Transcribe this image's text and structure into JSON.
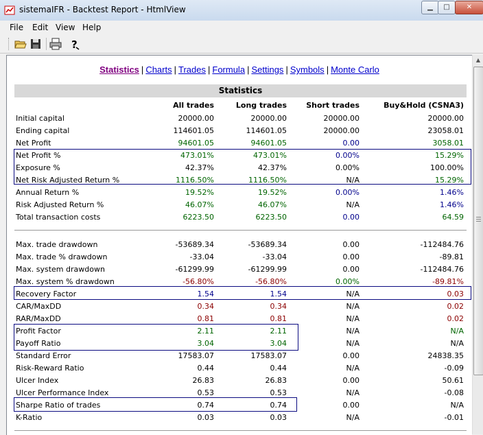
{
  "window": {
    "title": "sistemaIFR - Backtest Report - HtmlView"
  },
  "menu": [
    "File",
    "Edit",
    "View",
    "Help"
  ],
  "toolbar": {
    "icons": [
      "open-folder-icon",
      "save-icon",
      "print-icon",
      "help-icon"
    ]
  },
  "nav": {
    "links": [
      "Statistics",
      "Charts",
      "Trades",
      "Formula",
      "Settings",
      "Symbols",
      "Monte Carlo"
    ],
    "active": "Statistics",
    "separator": "|"
  },
  "stats": {
    "title": "Statistics",
    "columns": [
      "All trades",
      "Long trades",
      "Short trades",
      "Buy&Hold (CSNA3)"
    ],
    "rows": [
      {
        "label": "Initial capital",
        "values": [
          "20000.00",
          "20000.00",
          "20000.00",
          "20000.00"
        ],
        "colors": [
          "",
          "",
          "",
          ""
        ]
      },
      {
        "label": "Ending capital",
        "values": [
          "114601.05",
          "114601.05",
          "20000.00",
          "23058.01"
        ],
        "colors": [
          "",
          "",
          "",
          ""
        ]
      },
      {
        "label": "Net Profit",
        "values": [
          "94601.05",
          "94601.05",
          "0.00",
          "3058.01"
        ],
        "colors": [
          "green",
          "green",
          "blue",
          "green"
        ]
      },
      {
        "label": "Net Profit %",
        "values": [
          "473.01%",
          "473.01%",
          "0.00%",
          "15.29%"
        ],
        "colors": [
          "green",
          "green",
          "blue",
          "green"
        ]
      },
      {
        "label": "Exposure %",
        "values": [
          "42.37%",
          "42.37%",
          "0.00%",
          "100.00%"
        ],
        "colors": [
          "",
          "",
          "",
          ""
        ]
      },
      {
        "label": "Net Risk Adjusted Return %",
        "values": [
          "1116.50%",
          "1116.50%",
          "N/A",
          "15.29%"
        ],
        "colors": [
          "green",
          "green",
          "",
          "green"
        ]
      },
      {
        "label": "Annual Return %",
        "values": [
          "19.52%",
          "19.52%",
          "0.00%",
          "1.46%"
        ],
        "colors": [
          "green",
          "green",
          "blue",
          "blue"
        ]
      },
      {
        "label": "Risk Adjusted Return %",
        "values": [
          "46.07%",
          "46.07%",
          "N/A",
          "1.46%"
        ],
        "colors": [
          "green",
          "green",
          "",
          "blue"
        ]
      },
      {
        "label": "Total transaction costs",
        "values": [
          "6223.50",
          "6223.50",
          "0.00",
          "64.59"
        ],
        "colors": [
          "green",
          "green",
          "blue",
          "green"
        ]
      },
      {
        "label": "Max. trade drawdown",
        "values": [
          "-53689.34",
          "-53689.34",
          "0.00",
          "-112484.76"
        ],
        "colors": [
          "",
          "",
          "",
          ""
        ]
      },
      {
        "label": "Max. trade % drawdown",
        "values": [
          "-33.04",
          "-33.04",
          "0.00",
          "-89.81"
        ],
        "colors": [
          "",
          "",
          "",
          ""
        ]
      },
      {
        "label": "Max. system drawdown",
        "values": [
          "-61299.99",
          "-61299.99",
          "0.00",
          "-112484.76"
        ],
        "colors": [
          "",
          "",
          "",
          ""
        ]
      },
      {
        "label": "Max. system % drawdown",
        "values": [
          "-56.80%",
          "-56.80%",
          "0.00%",
          "-89.81%"
        ],
        "colors": [
          "red",
          "red",
          "green",
          "red"
        ]
      },
      {
        "label": "Recovery Factor",
        "values": [
          "1.54",
          "1.54",
          "N/A",
          "0.03"
        ],
        "colors": [
          "blue",
          "blue",
          "",
          "red"
        ]
      },
      {
        "label": "CAR/MaxDD",
        "values": [
          "0.34",
          "0.34",
          "N/A",
          "0.02"
        ],
        "colors": [
          "red",
          "red",
          "",
          "red"
        ]
      },
      {
        "label": "RAR/MaxDD",
        "values": [
          "0.81",
          "0.81",
          "N/A",
          "0.02"
        ],
        "colors": [
          "red",
          "red",
          "",
          "red"
        ]
      },
      {
        "label": "Profit Factor",
        "values": [
          "2.11",
          "2.11",
          "N/A",
          "N/A"
        ],
        "colors": [
          "green",
          "green",
          "",
          "green"
        ]
      },
      {
        "label": "Payoff Ratio",
        "values": [
          "3.04",
          "3.04",
          "N/A",
          "N/A"
        ],
        "colors": [
          "green",
          "green",
          "",
          ""
        ]
      },
      {
        "label": "Standard Error",
        "values": [
          "17583.07",
          "17583.07",
          "0.00",
          "24838.35"
        ],
        "colors": [
          "",
          "",
          "",
          ""
        ]
      },
      {
        "label": "Risk-Reward Ratio",
        "values": [
          "0.44",
          "0.44",
          "N/A",
          "-0.09"
        ],
        "colors": [
          "",
          "",
          "",
          ""
        ]
      },
      {
        "label": "Ulcer Index",
        "values": [
          "26.83",
          "26.83",
          "0.00",
          "50.61"
        ],
        "colors": [
          "",
          "",
          "",
          ""
        ]
      },
      {
        "label": "Ulcer Performance Index",
        "values": [
          "0.53",
          "0.53",
          "N/A",
          "-0.08"
        ],
        "colors": [
          "",
          "",
          "",
          ""
        ]
      },
      {
        "label": "Sharpe Ratio of trades",
        "values": [
          "0.74",
          "0.74",
          "0.00",
          "N/A"
        ],
        "colors": [
          "",
          "",
          "",
          ""
        ]
      },
      {
        "label": "K-Ratio",
        "values": [
          "0.03",
          "0.03",
          "N/A",
          "-0.01"
        ],
        "colors": [
          "",
          "",
          "",
          ""
        ]
      }
    ]
  },
  "colors": {
    "green": "#006400",
    "blue": "#00008b",
    "red": "#8b0000",
    "link": "#0000cc",
    "visited": "#800080",
    "highlight_box": "#0a0a80"
  }
}
